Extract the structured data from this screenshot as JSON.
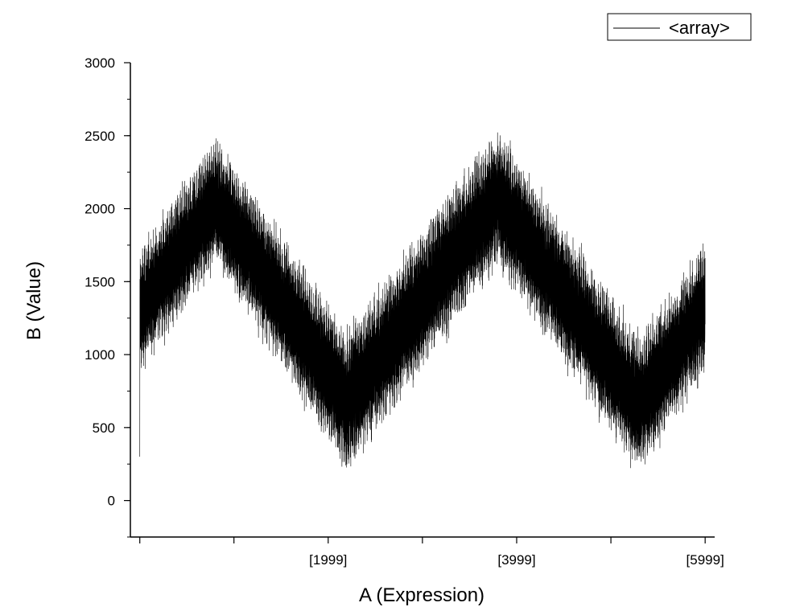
{
  "chart_data": {
    "type": "line",
    "title": "",
    "xlabel": "A (Expression)",
    "ylabel": "B (Value)",
    "xlim": [
      -100,
      6100
    ],
    "ylim": [
      -250,
      3000
    ],
    "x_ticks": [
      {
        "value": 1999,
        "label": "[1999]"
      },
      {
        "value": 3999,
        "label": "[3999]"
      },
      {
        "value": 5999,
        "label": "[5999]"
      }
    ],
    "x_minor_ticks": [
      0,
      999,
      1999,
      2999,
      3999,
      4999,
      5999
    ],
    "y_ticks": [
      0,
      500,
      1000,
      1500,
      2000,
      2500,
      3000
    ],
    "legend": {
      "position": "top-right",
      "entries": [
        "<array>"
      ]
    },
    "grid": false,
    "series": [
      {
        "name": "<array>",
        "color": "#000000",
        "description_points": {
          "x": [
            0,
            800,
            2200,
            3800,
            5300,
            5999
          ],
          "center": [
            1300,
            2050,
            680,
            2080,
            650,
            1320
          ],
          "amplitude": [
            450,
            450,
            500,
            480,
            480,
            450
          ]
        },
        "x": [
          0,
          5999
        ],
        "sample_count": 6000,
        "first_value": 300
      }
    ]
  }
}
